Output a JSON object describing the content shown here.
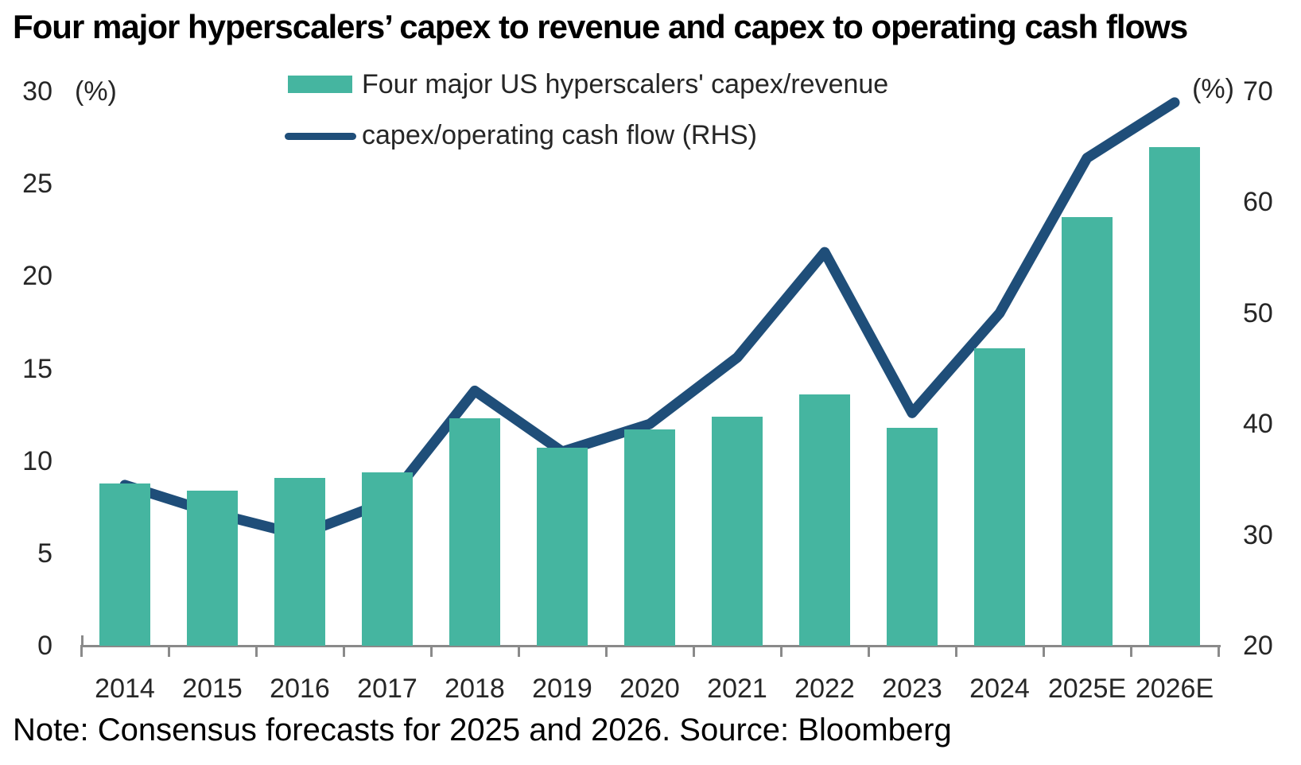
{
  "chart": {
    "title": "Four major hyperscalers’ capex to revenue and capex to operating cash flows",
    "note": "Note: Consensus forecasts for 2025 and 2026. Source: Bloomberg"
  },
  "chart_data": {
    "type": "combo_bar_line",
    "title": "Four major hyperscalers’ capex to revenue and capex to operating cash flows",
    "categories": [
      "2014",
      "2015",
      "2016",
      "2017",
      "2018",
      "2019",
      "2020",
      "2021",
      "2022",
      "2023",
      "2024",
      "2025E",
      "2026E"
    ],
    "series": [
      {
        "name": "Four major US hyperscalers' capex/revenue",
        "type": "bar",
        "axis": "left",
        "color": "#45b5a0",
        "values": [
          8.8,
          8.4,
          9.1,
          9.4,
          12.3,
          10.7,
          11.7,
          12.4,
          13.6,
          11.8,
          16.1,
          23.2,
          27.0
        ]
      },
      {
        "name": "capex/operating cash flow (RHS)",
        "type": "line",
        "axis": "right",
        "color": "#1f4e79",
        "values": [
          34.5,
          32,
          30,
          33,
          43,
          37.5,
          40,
          46,
          55.5,
          41,
          50,
          64,
          69
        ]
      }
    ],
    "left_axis": {
      "unit": "(%)",
      "min": 0,
      "max": 30,
      "ticks": [
        0,
        5,
        10,
        15,
        20,
        25,
        30
      ]
    },
    "right_axis": {
      "unit": "(%)",
      "min": 20,
      "max": 70,
      "ticks": [
        20,
        30,
        40,
        50,
        60,
        70
      ]
    },
    "grid": false,
    "legend_position": "top-center",
    "axis_color": "#8a8a8a",
    "note": "Note: Consensus forecasts for 2025 and 2026. Source: Bloomberg"
  }
}
